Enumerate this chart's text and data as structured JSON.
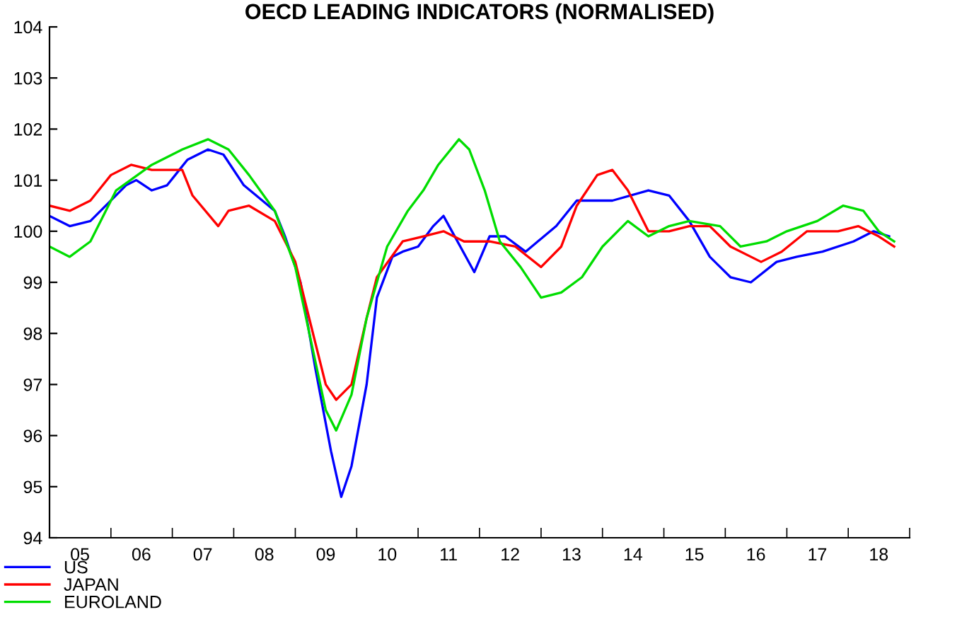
{
  "chart_data": {
    "type": "line",
    "title": "OECD LEADING INDICATORS (NORMALISED)",
    "xlim": [
      "2005-01",
      "2019-01"
    ],
    "ylim": [
      94,
      104
    ],
    "yticks": [
      94,
      95,
      96,
      97,
      98,
      99,
      100,
      101,
      102,
      103,
      104
    ],
    "xticks": [
      {
        "value": "2005-01",
        "label": null
      },
      {
        "value": "2005-07",
        "label": "05"
      },
      {
        "value": "2006-01",
        "label": null
      },
      {
        "value": "2006-07",
        "label": "06"
      },
      {
        "value": "2007-01",
        "label": null
      },
      {
        "value": "2007-07",
        "label": "07"
      },
      {
        "value": "2008-01",
        "label": null
      },
      {
        "value": "2008-07",
        "label": "08"
      },
      {
        "value": "2009-01",
        "label": null
      },
      {
        "value": "2009-07",
        "label": "09"
      },
      {
        "value": "2010-01",
        "label": null
      },
      {
        "value": "2010-07",
        "label": "10"
      },
      {
        "value": "2011-01",
        "label": null
      },
      {
        "value": "2011-07",
        "label": "11"
      },
      {
        "value": "2012-01",
        "label": null
      },
      {
        "value": "2012-07",
        "label": "12"
      },
      {
        "value": "2013-01",
        "label": null
      },
      {
        "value": "2013-07",
        "label": "13"
      },
      {
        "value": "2014-01",
        "label": null
      },
      {
        "value": "2014-07",
        "label": "14"
      },
      {
        "value": "2015-01",
        "label": null
      },
      {
        "value": "2015-07",
        "label": "15"
      },
      {
        "value": "2016-01",
        "label": null
      },
      {
        "value": "2016-07",
        "label": "16"
      },
      {
        "value": "2017-01",
        "label": null
      },
      {
        "value": "2017-07",
        "label": "17"
      },
      {
        "value": "2018-01",
        "label": null
      },
      {
        "value": "2018-07",
        "label": "18"
      },
      {
        "value": "2019-01",
        "label": null
      }
    ],
    "grid": false,
    "legend": "bottom left",
    "series": [
      {
        "name": "US",
        "color": "#0000ff",
        "x": [
          "2005-01",
          "2005-05",
          "2005-09",
          "2006-04",
          "2006-06",
          "2006-09",
          "2006-12",
          "2007-04",
          "2007-08",
          "2007-11",
          "2008-03",
          "2008-09",
          "2008-11",
          "2009-02",
          "2009-05",
          "2009-08",
          "2009-10",
          "2009-12",
          "2010-03",
          "2010-05",
          "2010-08",
          "2010-10",
          "2011-01",
          "2011-04",
          "2011-06",
          "2011-12",
          "2012-03",
          "2012-06",
          "2012-10",
          "2013-04",
          "2013-08",
          "2014-03",
          "2014-10",
          "2015-02",
          "2015-06",
          "2015-10",
          "2016-02",
          "2016-06",
          "2016-11",
          "2017-03",
          "2017-08",
          "2018-02",
          "2018-06",
          "2018-09"
        ],
        "values": [
          100.3,
          100.1,
          100.2,
          100.9,
          101.0,
          100.8,
          100.9,
          101.4,
          101.6,
          101.5,
          100.9,
          100.4,
          99.9,
          99.0,
          97.3,
          95.7,
          94.8,
          95.4,
          97.0,
          98.7,
          99.5,
          99.6,
          99.7,
          100.1,
          100.3,
          99.2,
          99.9,
          99.9,
          99.6,
          100.1,
          100.6,
          100.6,
          100.8,
          100.7,
          100.2,
          99.5,
          99.1,
          99.0,
          99.4,
          99.5,
          99.6,
          99.8,
          100.0,
          99.9
        ]
      },
      {
        "name": "JAPAN",
        "color": "#ff0000",
        "x": [
          "2005-01",
          "2005-05",
          "2005-09",
          "2006-01",
          "2006-05",
          "2006-09",
          "2007-03",
          "2007-05",
          "2007-10",
          "2007-12",
          "2008-04",
          "2008-09",
          "2009-01",
          "2009-04",
          "2009-07",
          "2009-09",
          "2009-12",
          "2010-03",
          "2010-05",
          "2010-10",
          "2011-02",
          "2011-06",
          "2011-10",
          "2012-03",
          "2012-08",
          "2013-01",
          "2013-05",
          "2013-08",
          "2013-12",
          "2014-03",
          "2014-06",
          "2014-10",
          "2015-02",
          "2015-06",
          "2015-10",
          "2016-02",
          "2016-08",
          "2016-12",
          "2017-05",
          "2017-11",
          "2018-03",
          "2018-07",
          "2018-10"
        ],
        "values": [
          100.5,
          100.4,
          100.6,
          101.1,
          101.3,
          101.2,
          101.2,
          100.7,
          100.1,
          100.4,
          100.5,
          100.2,
          99.4,
          98.2,
          97.0,
          96.7,
          97.0,
          98.3,
          99.1,
          99.8,
          99.9,
          100.0,
          99.8,
          99.8,
          99.7,
          99.3,
          99.7,
          100.5,
          101.1,
          101.2,
          100.8,
          100.0,
          100.0,
          100.1,
          100.1,
          99.7,
          99.4,
          99.6,
          100.0,
          100.0,
          100.1,
          99.9,
          99.7
        ]
      },
      {
        "name": "EUROLAND",
        "color": "#00dd00",
        "x": [
          "2005-01",
          "2005-05",
          "2005-09",
          "2006-02",
          "2006-09",
          "2007-03",
          "2007-08",
          "2007-12",
          "2008-04",
          "2008-09",
          "2009-01",
          "2009-04",
          "2009-07",
          "2009-09",
          "2009-12",
          "2010-03",
          "2010-07",
          "2010-11",
          "2011-02",
          "2011-05",
          "2011-09",
          "2011-11",
          "2012-02",
          "2012-05",
          "2012-09",
          "2013-01",
          "2013-05",
          "2013-09",
          "2014-01",
          "2014-06",
          "2014-10",
          "2015-02",
          "2015-06",
          "2015-12",
          "2016-04",
          "2016-09",
          "2017-01",
          "2017-07",
          "2017-12",
          "2018-04",
          "2018-07",
          "2018-10"
        ],
        "values": [
          99.7,
          99.5,
          99.8,
          100.8,
          101.3,
          101.6,
          101.8,
          101.6,
          101.1,
          100.4,
          99.3,
          97.9,
          96.5,
          96.1,
          96.8,
          98.3,
          99.7,
          100.4,
          100.8,
          101.3,
          101.8,
          101.6,
          100.8,
          99.8,
          99.3,
          98.7,
          98.8,
          99.1,
          99.7,
          100.2,
          99.9,
          100.1,
          100.2,
          100.1,
          99.7,
          99.8,
          100.0,
          100.2,
          100.5,
          100.4,
          100.0,
          99.8
        ]
      }
    ]
  }
}
